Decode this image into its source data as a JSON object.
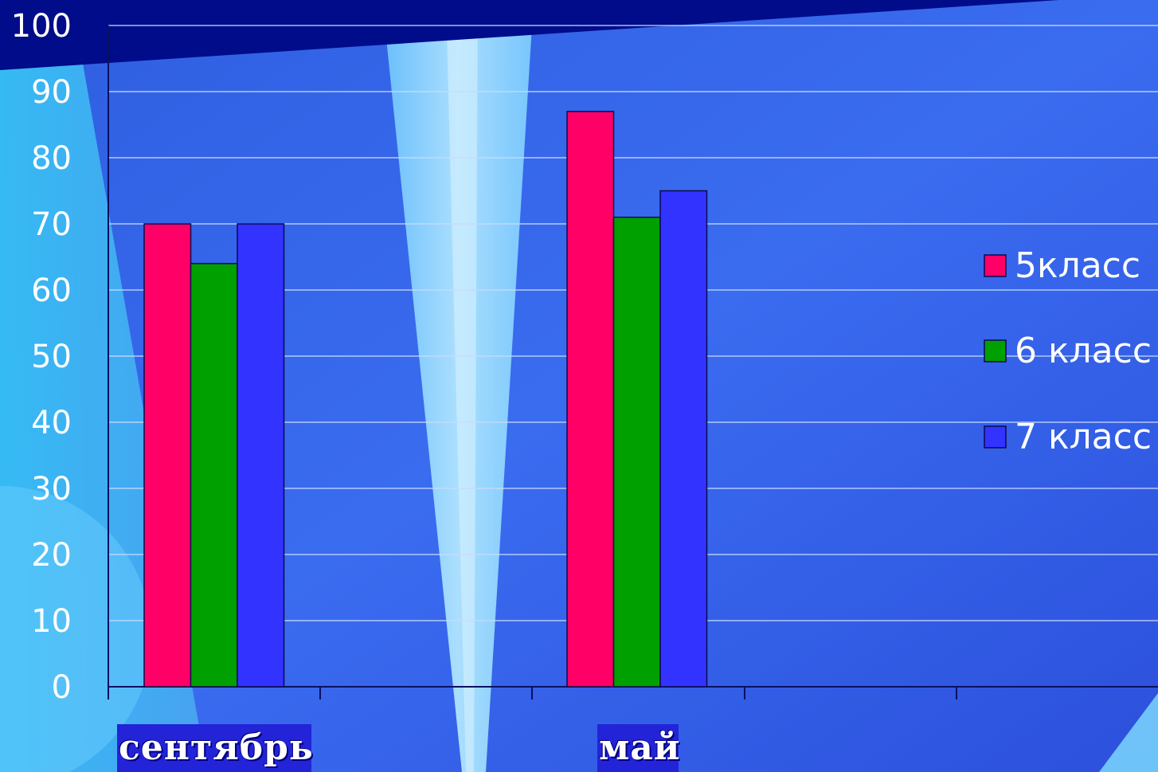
{
  "chart_data": {
    "type": "bar",
    "categories": [
      "сентябрь",
      "май"
    ],
    "series": [
      {
        "name": "5класс",
        "values": [
          70,
          87
        ],
        "color": "#ff0066"
      },
      {
        "name": "6 класс",
        "values": [
          64,
          71
        ],
        "color": "#00a000"
      },
      {
        "name": "7 класс",
        "values": [
          70,
          75
        ],
        "color": "#3333ff"
      }
    ],
    "ylim": [
      0,
      100
    ],
    "yticks": [
      "0",
      "10",
      "20",
      "30",
      "40",
      "50",
      "60",
      "70",
      "80",
      "90",
      "100"
    ],
    "grid": true,
    "legend": "right"
  },
  "colors": {
    "background": "#3a66e8",
    "light_band": "#9fe0ff",
    "dark_accent": "#000c8a",
    "label_box": "#2323d8"
  }
}
